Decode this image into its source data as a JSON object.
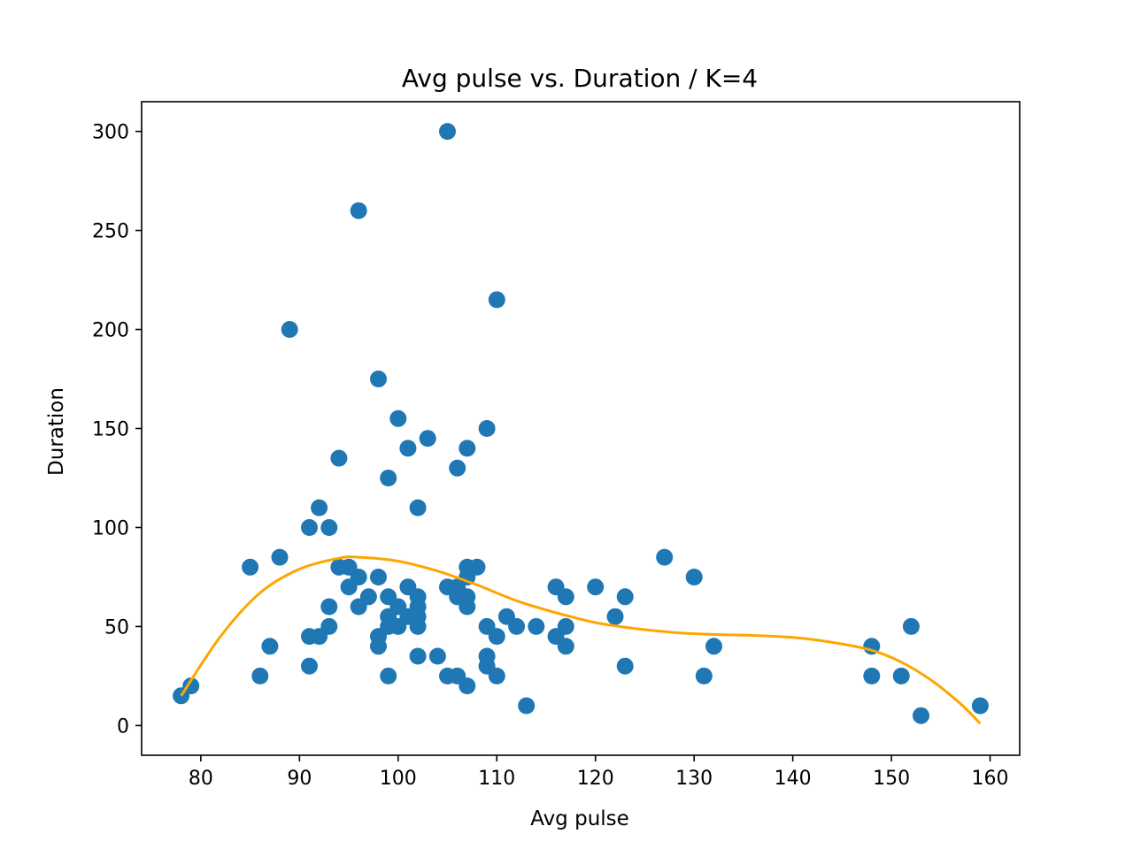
{
  "chart_data": {
    "type": "scatter",
    "title": "Avg pulse vs. Duration / K=4",
    "xlabel": "Avg pulse",
    "ylabel": "Duration",
    "xlim": [
      74.0,
      163.0
    ],
    "ylim": [
      -15.0,
      315.0
    ],
    "xticks": [
      80,
      90,
      100,
      110,
      120,
      130,
      140,
      150,
      160
    ],
    "yticks": [
      0,
      50,
      100,
      150,
      200,
      250,
      300
    ],
    "grid": false,
    "legend": "none",
    "series": [
      {
        "kind": "scatter",
        "color": "#1f77b4",
        "points": [
          [
            78,
            15
          ],
          [
            79,
            20
          ],
          [
            85,
            80
          ],
          [
            86,
            25
          ],
          [
            87,
            40
          ],
          [
            88,
            85
          ],
          [
            89,
            200
          ],
          [
            91,
            100
          ],
          [
            91,
            45
          ],
          [
            91,
            30
          ],
          [
            92,
            110
          ],
          [
            92,
            45
          ],
          [
            93,
            100
          ],
          [
            93,
            60
          ],
          [
            93,
            50
          ],
          [
            94,
            135
          ],
          [
            94,
            80
          ],
          [
            95,
            80
          ],
          [
            95,
            70
          ],
          [
            96,
            260
          ],
          [
            96,
            75
          ],
          [
            96,
            60
          ],
          [
            97,
            65
          ],
          [
            98,
            175
          ],
          [
            98,
            75
          ],
          [
            98,
            45
          ],
          [
            98,
            40
          ],
          [
            99,
            125
          ],
          [
            99,
            65
          ],
          [
            99,
            55
          ],
          [
            99,
            50
          ],
          [
            99,
            25
          ],
          [
            100,
            155
          ],
          [
            100,
            60
          ],
          [
            100,
            50
          ],
          [
            101,
            140
          ],
          [
            101,
            70
          ],
          [
            101,
            55
          ],
          [
            102,
            110
          ],
          [
            102,
            65
          ],
          [
            102,
            60
          ],
          [
            102,
            55
          ],
          [
            102,
            50
          ],
          [
            102,
            35
          ],
          [
            103,
            145
          ],
          [
            104,
            35
          ],
          [
            105,
            300
          ],
          [
            105,
            70
          ],
          [
            105,
            25
          ],
          [
            106,
            130
          ],
          [
            106,
            70
          ],
          [
            106,
            65
          ],
          [
            106,
            25
          ],
          [
            107,
            140
          ],
          [
            107,
            80
          ],
          [
            107,
            75
          ],
          [
            107,
            65
          ],
          [
            107,
            60
          ],
          [
            107,
            20
          ],
          [
            108,
            80
          ],
          [
            109,
            150
          ],
          [
            109,
            50
          ],
          [
            109,
            35
          ],
          [
            109,
            30
          ],
          [
            110,
            215
          ],
          [
            110,
            45
          ],
          [
            110,
            25
          ],
          [
            111,
            55
          ],
          [
            112,
            50
          ],
          [
            113,
            10
          ],
          [
            114,
            50
          ],
          [
            116,
            70
          ],
          [
            116,
            45
          ],
          [
            117,
            65
          ],
          [
            117,
            50
          ],
          [
            117,
            40
          ],
          [
            120,
            70
          ],
          [
            122,
            55
          ],
          [
            123,
            65
          ],
          [
            123,
            30
          ],
          [
            127,
            85
          ],
          [
            130,
            75
          ],
          [
            131,
            25
          ],
          [
            132,
            40
          ],
          [
            148,
            40
          ],
          [
            148,
            25
          ],
          [
            151,
            25
          ],
          [
            152,
            50
          ],
          [
            153,
            5
          ],
          [
            159,
            10
          ]
        ]
      },
      {
        "kind": "fit-line",
        "color": "#ffa500",
        "x_range": [
          78,
          159
        ],
        "points": [
          [
            78,
            15
          ],
          [
            82,
            45
          ],
          [
            86,
            67
          ],
          [
            90,
            79
          ],
          [
            94,
            84.5
          ],
          [
            96,
            85
          ],
          [
            100,
            83
          ],
          [
            104,
            78
          ],
          [
            108,
            71
          ],
          [
            112,
            63
          ],
          [
            116,
            57
          ],
          [
            120,
            52
          ],
          [
            124,
            49
          ],
          [
            128,
            47
          ],
          [
            132,
            46
          ],
          [
            136,
            45.5
          ],
          [
            140,
            44.5
          ],
          [
            144,
            42
          ],
          [
            148,
            38
          ],
          [
            151,
            32
          ],
          [
            154,
            23
          ],
          [
            157,
            11
          ],
          [
            159,
            1
          ]
        ]
      }
    ]
  }
}
